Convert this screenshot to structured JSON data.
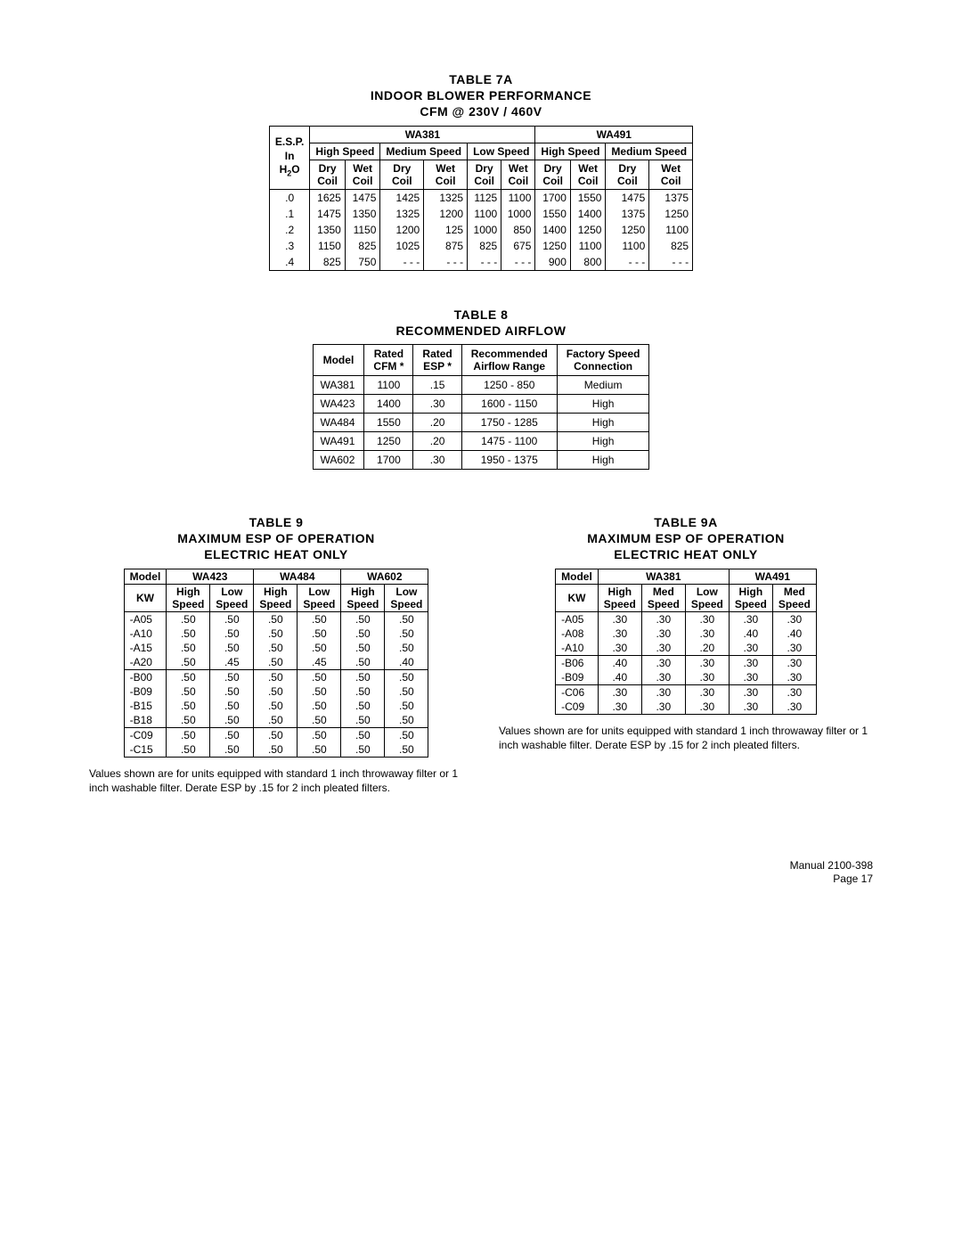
{
  "table7a": {
    "title1": "TABLE 7A",
    "title2": "INDOOR BLOWER PERFFORMANCE",
    "title2_fixed": "INDOOR BLOWER PERFORMANCE",
    "title3": "CFM @ 230V / 460V",
    "esp_label_1": "E.S.P.",
    "esp_label_2": "In",
    "esp_label_3": "H₂O",
    "model_a": "WA381",
    "model_b": "WA491",
    "speeds_a": [
      "High Speed",
      "Medium Speed",
      "Low Speed"
    ],
    "speeds_b": [
      "High Speed",
      "Medium Speed"
    ],
    "coil_dry": "Dry Coil",
    "coil_wet": "Wet Coil",
    "esp_vals": [
      ".0",
      ".1",
      ".2",
      ".3",
      ".4"
    ],
    "rows": [
      [
        "1625",
        "1475",
        "1425",
        "1325",
        "1125",
        "1100",
        "1700",
        "1550",
        "1475",
        "1375"
      ],
      [
        "1475",
        "1350",
        "1325",
        "1200",
        "1100",
        "1000",
        "1550",
        "1400",
        "1375",
        "1250"
      ],
      [
        "1350",
        "1150",
        "1200",
        "125",
        "1000",
        "850",
        "1400",
        "1250",
        "1250",
        "1100"
      ],
      [
        "1150",
        "825",
        "1025",
        "875",
        "825",
        "675",
        "1250",
        "1100",
        "1100",
        "825"
      ],
      [
        "825",
        "750",
        "- - -",
        "- - -",
        "- - -",
        "- - -",
        "900",
        "800",
        "- - -",
        "- - -"
      ]
    ]
  },
  "table8": {
    "title1": "TABLE 8",
    "title2": "RECOMMENDED AIRFLOW",
    "headers": [
      "Model",
      "Rated CFM *",
      "Rated ESP *",
      "Recommended Airflow Range",
      "Factory Speed Connection"
    ],
    "rows": [
      [
        "WA381",
        "1100",
        ".15",
        "1250 - 850",
        "Medium"
      ],
      [
        "WA423",
        "1400",
        ".30",
        "1600 - 1150",
        "High"
      ],
      [
        "WA484",
        "1550",
        ".20",
        "1750 - 1285",
        "High"
      ],
      [
        "WA491",
        "1250",
        ".20",
        "1475 - 1100",
        "High"
      ],
      [
        "WA602",
        "1700",
        ".30",
        "1950 - 1375",
        "High"
      ]
    ]
  },
  "table9": {
    "title1": "TABLE 9",
    "title2": "MAXIMUM ESP OF OPERATION",
    "title3": "ELECTRIC HEAT ONLY",
    "model_hdr": "Model",
    "kw_hdr": "KW",
    "models": [
      "WA423",
      "WA484",
      "WA602"
    ],
    "speed_cols": [
      "High Speed",
      "Low Speed",
      "High Speed",
      "Low Speed",
      "High Speed",
      "Low Speed"
    ],
    "groups": [
      [
        [
          "-A05",
          ".50",
          ".50",
          ".50",
          ".50",
          ".50",
          ".50"
        ],
        [
          "-A10",
          ".50",
          ".50",
          ".50",
          ".50",
          ".50",
          ".50"
        ],
        [
          "-A15",
          ".50",
          ".50",
          ".50",
          ".50",
          ".50",
          ".50"
        ],
        [
          "-A20",
          ".50",
          ".45",
          ".50",
          ".45",
          ".50",
          ".40"
        ]
      ],
      [
        [
          "-B00",
          ".50",
          ".50",
          ".50",
          ".50",
          ".50",
          ".50"
        ],
        [
          "-B09",
          ".50",
          ".50",
          ".50",
          ".50",
          ".50",
          ".50"
        ],
        [
          "-B15",
          ".50",
          ".50",
          ".50",
          ".50",
          ".50",
          ".50"
        ],
        [
          "-B18",
          ".50",
          ".50",
          ".50",
          ".50",
          ".50",
          ".50"
        ]
      ],
      [
        [
          "-C09",
          ".50",
          ".50",
          ".50",
          ".50",
          ".50",
          ".50"
        ],
        [
          "-C15",
          ".50",
          ".50",
          ".50",
          ".50",
          ".50",
          ".50"
        ]
      ]
    ],
    "note": "Values shown are for units equipped with standard 1 inch throwaway filter or 1 inch washable filter. Derate ESP by .15 for 2 inch pleated filters."
  },
  "table9a": {
    "title1": "TABLE 9A",
    "title2": "MAXIMUM ESP OF OPERATION",
    "title3": "ELECTRIC HEAT ONLY",
    "model_hdr": "Model",
    "kw_hdr": "KW",
    "models": [
      "WA381",
      "WA491"
    ],
    "speed_cols": [
      "High Speed",
      "Med Speed",
      "Low Speed",
      "High Speed",
      "Med Speed"
    ],
    "groups": [
      [
        [
          "-A05",
          ".30",
          ".30",
          ".30",
          ".30",
          ".30"
        ],
        [
          "-A08",
          ".30",
          ".30",
          ".30",
          ".40",
          ".40"
        ],
        [
          "-A10",
          ".30",
          ".30",
          ".20",
          ".30",
          ".30"
        ]
      ],
      [
        [
          "-B06",
          ".40",
          ".30",
          ".30",
          ".30",
          ".30"
        ],
        [
          "-B09",
          ".40",
          ".30",
          ".30",
          ".30",
          ".30"
        ]
      ],
      [
        [
          "-C06",
          ".30",
          ".30",
          ".30",
          ".30",
          ".30"
        ],
        [
          "-C09",
          ".30",
          ".30",
          ".30",
          ".30",
          ".30"
        ]
      ]
    ],
    "note": "Values shown are for units equipped with standard 1 inch throwaway filter or 1 inch washable filter.  Derate ESP by .15 for 2 inch pleated filters."
  },
  "footer": {
    "line1": "Manual   2100-398",
    "line2": "Page    17"
  }
}
